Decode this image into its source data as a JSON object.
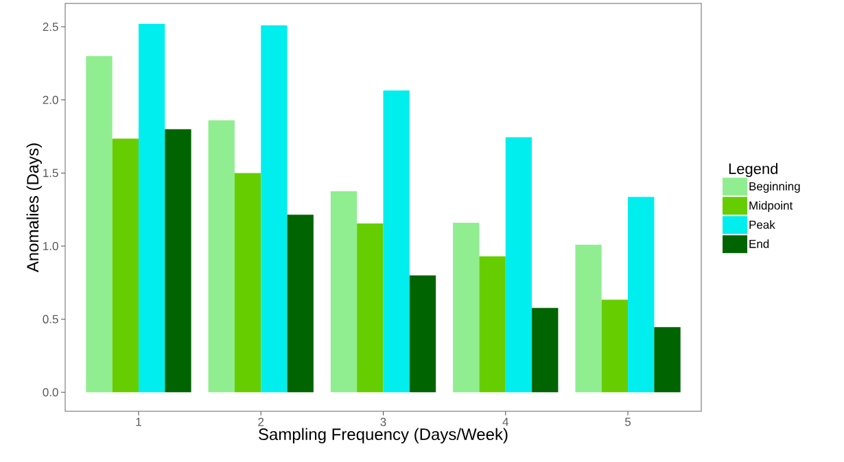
{
  "chart_data": {
    "type": "bar",
    "xlabel": "Sampling Frequency (Days/Week)",
    "ylabel": "Anomalies (Days)",
    "legend_title": "Legend",
    "legend": "right",
    "categories": [
      "1",
      "2",
      "3",
      "4",
      "5"
    ],
    "series": [
      {
        "name": "Beginning",
        "color": "#90ee90",
        "values": [
          2.3,
          1.86,
          1.375,
          1.16,
          1.01
        ]
      },
      {
        "name": "Midpoint",
        "color": "#66cd00",
        "values": [
          1.735,
          1.5,
          1.155,
          0.93,
          0.633
        ]
      },
      {
        "name": "Peak",
        "color": "#00eeee",
        "values": [
          2.52,
          2.51,
          2.065,
          1.745,
          1.337
        ]
      },
      {
        "name": "End",
        "color": "#006400",
        "values": [
          1.8,
          1.215,
          0.8,
          0.577,
          0.445
        ]
      }
    ],
    "ylim": [
      -0.13,
      2.66
    ],
    "yticks": [
      {
        "value": 0,
        "label": "0.0"
      },
      0.5,
      {
        "value": 1,
        "label": "1.0"
      },
      1.5,
      {
        "value": 2,
        "label": "2.0"
      },
      2.5
    ],
    "grid": false
  }
}
